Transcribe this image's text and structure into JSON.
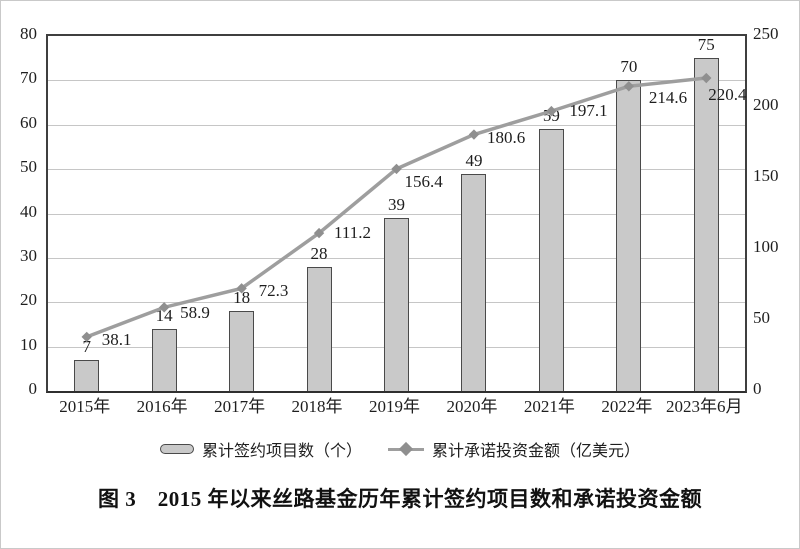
{
  "colors": {
    "bar_fill": "#c9c9c9",
    "bar_border": "#4a4a4a",
    "line": "#9e9e9e",
    "marker": "#8f8f8f",
    "grid": "#c6c6c6",
    "axis": "#3f3f3f",
    "text": "#1e1e1e"
  },
  "chart_data": {
    "type": "bar+line combo",
    "categories": [
      "2015年",
      "2016年",
      "2017年",
      "2018年",
      "2019年",
      "2020年",
      "2021年",
      "2022年",
      "2023年6月"
    ],
    "series": [
      {
        "name": "累计签约项目数（个）",
        "type": "bar",
        "axis": "left",
        "values": [
          7,
          14,
          18,
          28,
          39,
          49,
          59,
          70,
          75
        ]
      },
      {
        "name": "累计承诺投资金额（亿美元）",
        "type": "line",
        "axis": "right",
        "values": [
          38.1,
          58.9,
          72.3,
          111.2,
          156.4,
          180.6,
          197.1,
          214.6,
          220.4
        ]
      }
    ],
    "left_axis": {
      "min": 0,
      "max": 80,
      "step": 10,
      "ticks": [
        "0",
        "10",
        "20",
        "30",
        "40",
        "50",
        "60",
        "70",
        "80"
      ]
    },
    "right_axis": {
      "min": 0,
      "max": 250,
      "step": 50,
      "ticks": [
        "0",
        "50",
        "100",
        "150",
        "200",
        "250"
      ]
    },
    "grid": "horizontal only",
    "legend_position": "bottom center",
    "caption": "图 3　2015 年以来丝路基金历年累计签约项目数和承诺投资金额"
  }
}
